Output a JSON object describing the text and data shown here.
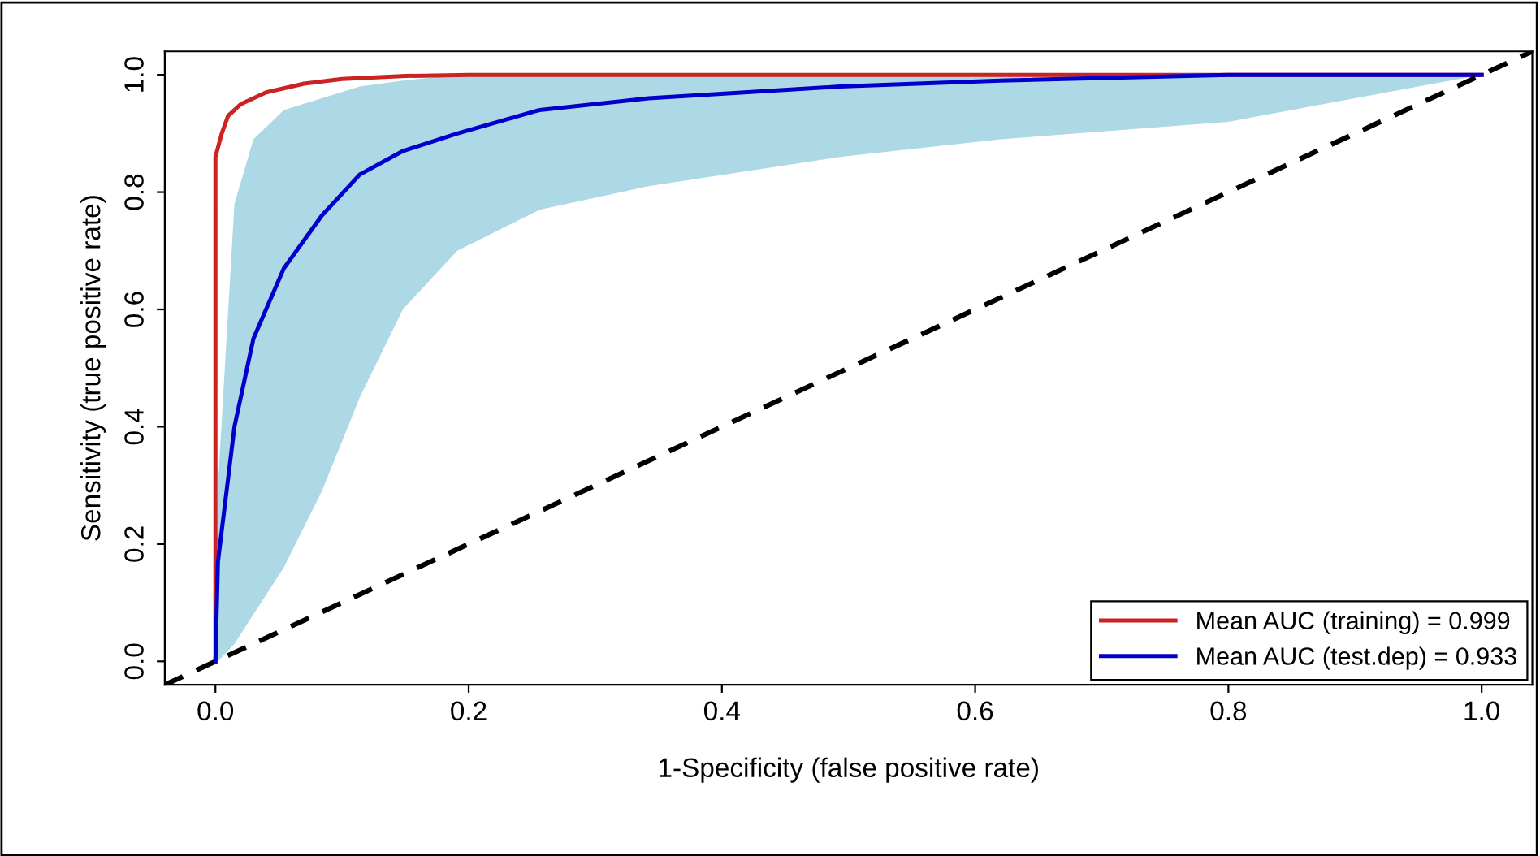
{
  "chart_data": {
    "type": "line",
    "xlabel": "1-Specificity (false positive rate)",
    "ylabel": "Sensitivity (true positive rate)",
    "xlim": [
      -0.04,
      1.04
    ],
    "ylim": [
      -0.04,
      1.04
    ],
    "xticks": [
      {
        "value": 0,
        "label": "0.0"
      },
      0.2,
      0.4,
      0.6,
      0.8,
      {
        "value": 1,
        "label": "1.0"
      }
    ],
    "yticks": [
      {
        "value": 0,
        "label": "0.0"
      },
      0.2,
      0.4,
      0.6,
      0.8,
      {
        "value": 1,
        "label": "1.0"
      }
    ],
    "grid": false,
    "legend": "bottom right",
    "marker": "none",
    "series": [
      {
        "name": "Mean AUC (training) = 0.999",
        "color": "#cc2222",
        "line_style": "solid",
        "x": [
          0,
          0,
          0.005,
          0.01,
          0.02,
          0.04,
          0.07,
          0.1,
          0.15,
          0.2,
          1
        ],
        "values": [
          0,
          0.86,
          0.9,
          0.93,
          0.95,
          0.97,
          0.985,
          0.993,
          0.998,
          1.0,
          1.0
        ]
      },
      {
        "name": "Mean AUC (test.dep) = 0.933",
        "color": "#0000cc",
        "line_style": "solid",
        "x": [
          0,
          0.002,
          0.015,
          0.03,
          0.054,
          0.084,
          0.114,
          0.148,
          0.191,
          0.256,
          0.342,
          0.493,
          0.62,
          0.8,
          1
        ],
        "values": [
          0,
          0.17,
          0.4,
          0.55,
          0.67,
          0.76,
          0.83,
          0.87,
          0.9,
          0.94,
          0.96,
          0.98,
          0.99,
          1.0,
          1.0
        ],
        "lower": [
          0,
          0,
          0.03,
          0.08,
          0.16,
          0.29,
          0.45,
          0.6,
          0.7,
          0.77,
          0.81,
          0.86,
          0.89,
          0.92,
          1.0
        ],
        "upper": [
          0,
          0.3,
          0.78,
          0.89,
          0.94,
          0.96,
          0.98,
          0.99,
          1.0,
          1.0,
          1.0,
          1.0,
          1.0,
          1.0,
          1.0
        ]
      },
      {
        "color": "#000000",
        "line_style": "dashed",
        "x": [
          -0.04,
          1.04
        ],
        "values": [
          -0.04,
          1.04
        ]
      }
    ]
  }
}
